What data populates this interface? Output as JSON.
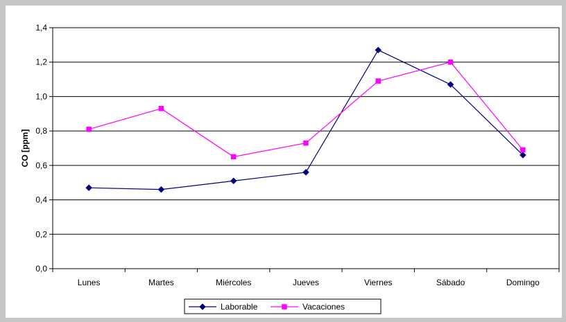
{
  "chart_data": {
    "type": "line",
    "title": "",
    "xlabel": "",
    "ylabel": "CO [ppm]",
    "categories": [
      "Lunes",
      "Martes",
      "Miércoles",
      "Jueves",
      "Viernes",
      "Sábado",
      "Domingo"
    ],
    "ylim": [
      0,
      1.4
    ],
    "yticks": [
      "0,0",
      "0,2",
      "0,4",
      "0,6",
      "0,8",
      "1,0",
      "1,2",
      "1,4"
    ],
    "grid": true,
    "legend_position": "bottom",
    "series": [
      {
        "name": "Laborable",
        "values": [
          0.47,
          0.46,
          0.51,
          0.56,
          1.27,
          1.07,
          0.66
        ],
        "color": "#00007a",
        "marker": "diamond"
      },
      {
        "name": "Vacaciones",
        "values": [
          0.81,
          0.93,
          0.65,
          0.73,
          1.09,
          1.2,
          0.69
        ],
        "color": "#ff00ff",
        "marker": "square"
      }
    ]
  }
}
